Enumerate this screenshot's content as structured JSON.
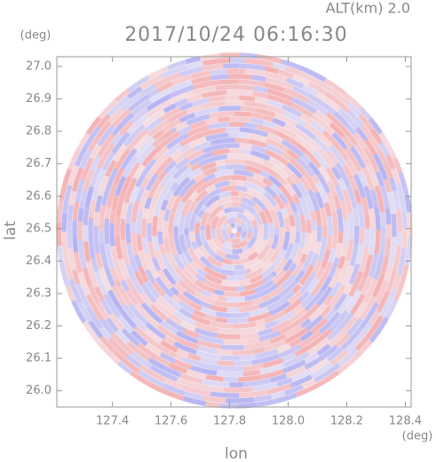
{
  "chart_data": {
    "type": "radar-ppi",
    "title": "2017/10/24 06:16:30",
    "altitude_label": "ALT(km) 2.0",
    "x_label": "lon",
    "y_label": "lat",
    "x_unit": "(deg)",
    "y_unit": "(deg)",
    "xlim": [
      127.21,
      128.42
    ],
    "ylim": [
      25.95,
      27.03
    ],
    "xticks": [
      127.4,
      127.6,
      127.8,
      {
        "value": 128,
        "label": "128.0"
      },
      128.2,
      128.4
    ],
    "yticks": [
      {
        "value": 26,
        "label": "26.0"
      },
      26.1,
      26.2,
      26.3,
      26.4,
      26.5,
      26.6,
      26.7,
      26.8,
      26.9,
      {
        "value": 27,
        "label": "27.0"
      }
    ],
    "colors": [
      "#f4a6a6",
      "#a9a9f2"
    ]
  }
}
